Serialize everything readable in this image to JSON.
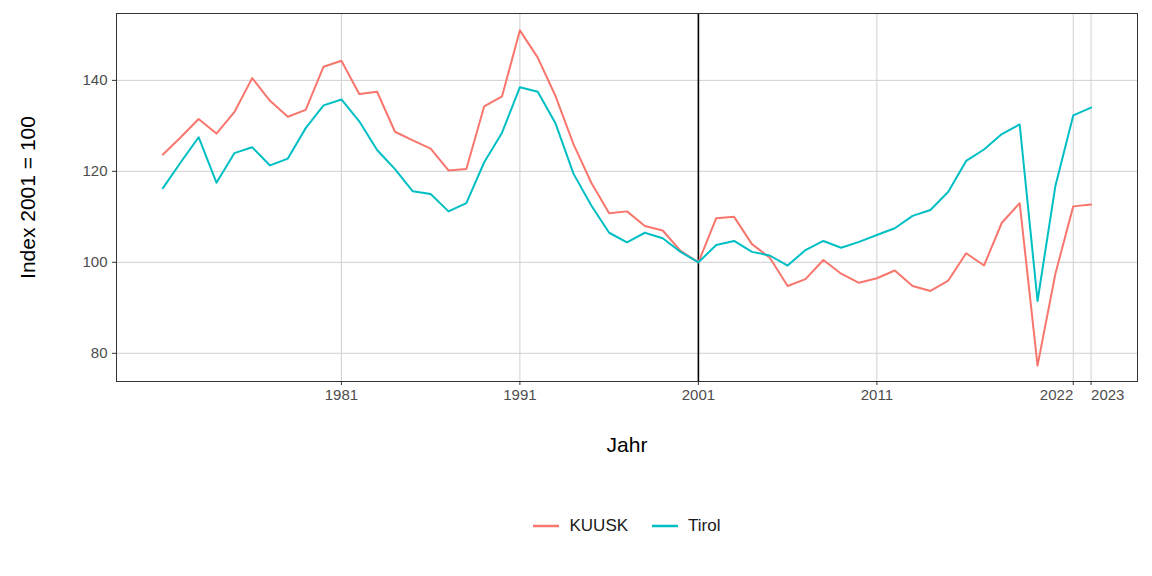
{
  "chart_data": {
    "type": "line",
    "x_label": "Jahr",
    "y_label": "Index 2001 = 100",
    "x": [
      1971,
      1972,
      1973,
      1974,
      1975,
      1976,
      1977,
      1978,
      1979,
      1980,
      1981,
      1982,
      1983,
      1984,
      1985,
      1986,
      1987,
      1988,
      1989,
      1990,
      1991,
      1992,
      1993,
      1994,
      1995,
      1996,
      1997,
      1998,
      1999,
      2000,
      2001,
      2002,
      2003,
      2004,
      2005,
      2006,
      2007,
      2008,
      2009,
      2010,
      2011,
      2012,
      2013,
      2014,
      2015,
      2016,
      2017,
      2018,
      2019,
      2020,
      2021,
      2022,
      2023
    ],
    "series": [
      {
        "name": "KUUSK",
        "color": "#F8766D",
        "values": [
          123.7,
          127.5,
          131.5,
          128.3,
          133,
          140.5,
          135.5,
          132,
          133.5,
          143,
          144.3,
          137,
          137.5,
          128.7,
          126.8,
          125,
          120.2,
          120.5,
          134.3,
          136.5,
          151,
          145,
          136.5,
          126,
          117.5,
          110.8,
          111.2,
          108,
          107,
          102.5,
          100,
          109.7,
          110,
          104,
          101,
          94.8,
          96.3,
          100.5,
          97.5,
          95.5,
          96.5,
          98.2,
          94.8,
          93.7,
          96,
          102,
          99.3,
          108.7,
          113,
          77.3,
          97.5,
          112.3,
          112.7
        ]
      },
      {
        "name": "Tirol",
        "color": "#00BFC4",
        "values": [
          116.3,
          122,
          127.5,
          117.5,
          124,
          125.3,
          121.3,
          122.8,
          129.5,
          134.5,
          135.8,
          131,
          124.7,
          120.5,
          115.6,
          115,
          111.2,
          113,
          122,
          128.5,
          138.5,
          137.5,
          130.5,
          119.5,
          112.5,
          106.5,
          104.4,
          106.5,
          105.3,
          102.3,
          100,
          103.8,
          104.7,
          102.3,
          101.5,
          99.3,
          102.7,
          104.7,
          103.2,
          104.5,
          106,
          107.5,
          110.2,
          111.5,
          115.5,
          122.3,
          124.8,
          128.2,
          130.3,
          91.5,
          116.8,
          132.3,
          134
        ]
      }
    ],
    "vline": 2001,
    "xlim": [
      1968.4,
      2025.6
    ],
    "xticks": [
      1981,
      1991,
      2001,
      2011,
      2022,
      2023
    ],
    "ylim": [
      73.8,
      154.7
    ],
    "yticks": [
      80,
      100,
      120,
      140
    ],
    "grid": true,
    "legend": "bottom"
  }
}
